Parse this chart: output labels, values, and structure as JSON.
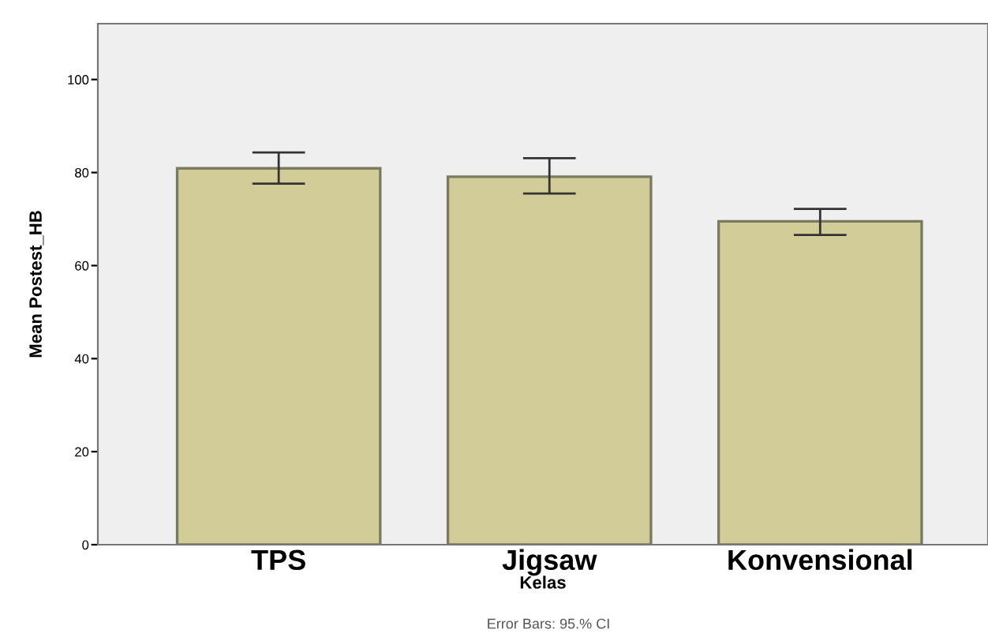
{
  "chart_data": {
    "type": "bar",
    "xlabel": "Kelas",
    "ylabel": "Mean Postest_HB",
    "categories": [
      "TPS",
      "Jigsaw",
      "Konvensional"
    ],
    "values": [
      80.9,
      79.1,
      69.5
    ],
    "errors": [
      [
        77.6,
        84.3
      ],
      [
        75.5,
        83.1
      ],
      [
        66.6,
        72.2
      ]
    ],
    "color": "#d2cd98",
    "ylim": [
      0,
      112
    ],
    "yticks": [
      0,
      20,
      40,
      60,
      80,
      100
    ],
    "grid": false,
    "annotations": [
      "Error Bars: 95.% CI"
    ]
  }
}
